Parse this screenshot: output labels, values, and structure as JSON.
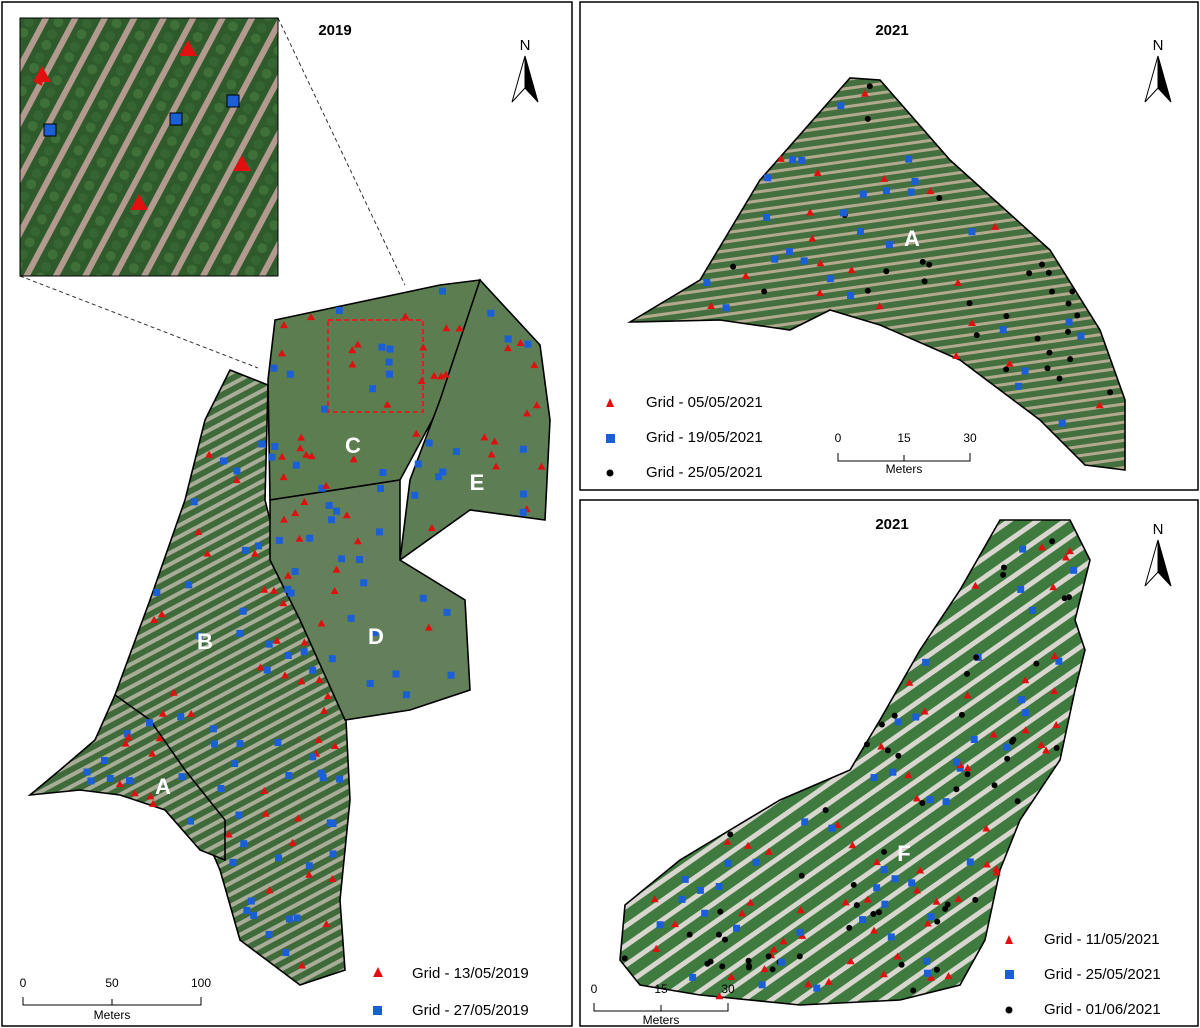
{
  "panels": [
    {
      "title": "2019",
      "north": "N",
      "zones": [
        "A",
        "B",
        "C",
        "D",
        "E"
      ],
      "scale": {
        "ticks": [
          0,
          50,
          100
        ],
        "unit": "Meters"
      },
      "legend": [
        "Grid - 13/05/2019",
        "Grid - 27/05/2019"
      ]
    },
    {
      "title": "2021",
      "north": "N",
      "zones": [
        "A"
      ],
      "scale": {
        "ticks": [
          0,
          15,
          30
        ],
        "unit": "Meters"
      },
      "legend": [
        "Grid - 05/05/2021",
        "Grid - 19/05/2021",
        "Grid - 25/05/2021"
      ]
    },
    {
      "title": "2021",
      "north": "N",
      "zones": [
        "F"
      ],
      "scale": {
        "ticks": [
          0,
          15,
          30
        ],
        "unit": "Meters"
      },
      "legend": [
        "Grid - 11/05/2021",
        "Grid - 25/05/2021",
        "Grid - 01/06/2021"
      ]
    }
  ]
}
